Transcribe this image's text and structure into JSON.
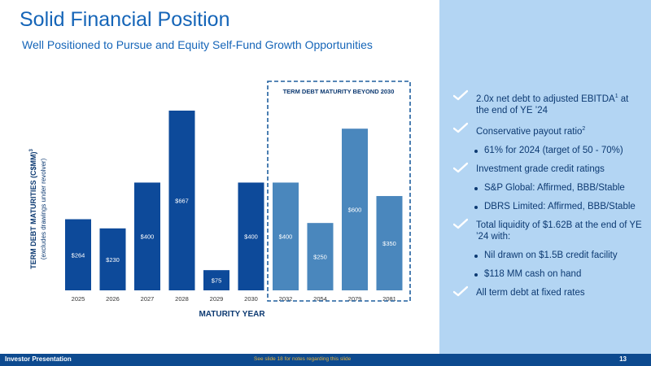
{
  "header": {
    "title": "Solid Financial Position",
    "subtitle": "Well Positioned to Pursue and Equity Self-Fund Growth Opportunities"
  },
  "chart_data": {
    "type": "bar",
    "categories": [
      "2025",
      "2026",
      "2027",
      "2028",
      "2029",
      "2030",
      "2032",
      "2054",
      "2079",
      "2081"
    ],
    "values": [
      264,
      230,
      400,
      667,
      75,
      400,
      400,
      250,
      600,
      350
    ],
    "value_labels": [
      "$264",
      "$230",
      "$400",
      "$667",
      "$75",
      "$400",
      "$400",
      "$250",
      "$600",
      "$350"
    ],
    "xlabel": "MATURITY YEAR",
    "ylabel": "TERM DEBT MATURITIES (C$MM)",
    "ylabel_superscript": "3",
    "ylabel_note": "(excludes drawings under revolver)",
    "ylim": [
      0,
      700
    ],
    "grid": false,
    "highlight_box_label": "TERM DEBT MATURITY BEYOND 2030",
    "colors": {
      "near_term": "#0d4a9a",
      "beyond_2030": "#4a87bd",
      "text": "#0d3a72"
    }
  },
  "bullets": [
    {
      "level": 1,
      "text": "2.0x net debt to adjusted EBITDA",
      "sup": "1",
      "after": " at the end of YE ’24"
    },
    {
      "level": 1,
      "text": "Conservative payout ratio",
      "sup": "2",
      "after": ""
    },
    {
      "level": 2,
      "text": "61% for 2024 (target of 50 - 70%)"
    },
    {
      "level": 1,
      "text": " Investment grade credit ratings"
    },
    {
      "level": 2,
      "text": "S&P Global: Affirmed, BBB/Stable"
    },
    {
      "level": 2,
      "text": "DBRS Limited: Affirmed, BBB/Stable"
    },
    {
      "level": 1,
      "text": "Total liquidity of $1.62B at the end of YE ’24 with:"
    },
    {
      "level": 2,
      "text": "Nil drawn on $1.5B credit facility"
    },
    {
      "level": 2,
      "text": "$118 MM cash on hand"
    },
    {
      "level": 1,
      "text": "All term debt at fixed rates"
    }
  ],
  "footer": {
    "left": "Investor Presentation",
    "center": "See slide 18 for notes regarding this slide",
    "page": "13"
  }
}
